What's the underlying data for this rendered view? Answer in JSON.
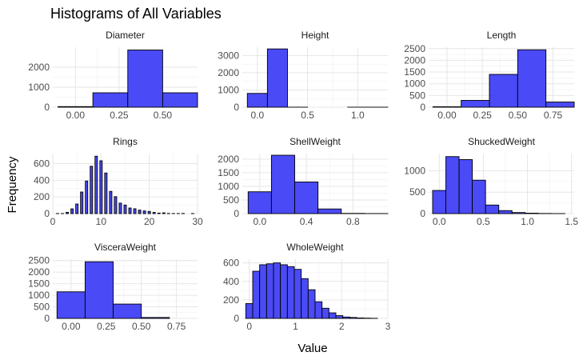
{
  "chart_data": {
    "type": "bar",
    "title": "Histograms of All Variables",
    "xlabel": "Value",
    "ylabel": "Frequency",
    "fill_color": "#4040f5",
    "outline_color": "#000000",
    "facet_layout": "3 columns, free scales",
    "facets": [
      {
        "name": "Diameter",
        "bin_width": 0.2,
        "bin_centers": [
          0.0,
          0.2,
          0.4,
          0.6
        ],
        "counts": [
          30,
          720,
          2860,
          720
        ],
        "x_ticks": [
          0.0,
          0.25,
          0.5
        ],
        "x_tick_labels": [
          "0.00",
          "0.25",
          "0.50"
        ],
        "xlim": [
          -0.13,
          0.7
        ],
        "y_ticks": [
          0,
          1000,
          2000
        ],
        "ylim": [
          0,
          3000
        ]
      },
      {
        "name": "Height",
        "bin_width": 0.2,
        "bin_centers": [
          0.0,
          0.2,
          0.4,
          0.6,
          0.8,
          1.0,
          1.2
        ],
        "counts": [
          800,
          3380,
          2,
          0,
          0,
          1,
          1
        ],
        "x_ticks": [
          0.0,
          0.5,
          1.0
        ],
        "x_tick_labels": [
          "0.0",
          "0.5",
          "1.0"
        ],
        "xlim": [
          -0.15,
          1.3
        ],
        "y_ticks": [
          0,
          1000,
          2000,
          3000
        ],
        "ylim": [
          0,
          3480
        ]
      },
      {
        "name": "Length",
        "bin_width": 0.2,
        "bin_centers": [
          0.0,
          0.2,
          0.4,
          0.6,
          0.8
        ],
        "counts": [
          20,
          290,
          1400,
          2450,
          220
        ],
        "x_ticks": [
          0.0,
          0.25,
          0.5,
          0.75
        ],
        "x_tick_labels": [
          "0.00",
          "0.25",
          "0.50",
          "0.75"
        ],
        "xlim": [
          -0.13,
          0.9
        ],
        "y_ticks": [
          0,
          500,
          1000,
          1500,
          2000,
          2500
        ],
        "ylim": [
          0,
          2560
        ]
      },
      {
        "name": "Rings",
        "bin_width": 0.5,
        "bin_centers": [
          1,
          2,
          3,
          4,
          5,
          6,
          7,
          8,
          9,
          10,
          11,
          12,
          13,
          14,
          15,
          16,
          17,
          18,
          19,
          20,
          21,
          22,
          23,
          24,
          25,
          26,
          27,
          28,
          29
        ],
        "counts": [
          1,
          1,
          15,
          57,
          115,
          259,
          391,
          568,
          689,
          634,
          487,
          267,
          203,
          126,
          103,
          67,
          58,
          42,
          32,
          26,
          14,
          6,
          9,
          2,
          1,
          1,
          2,
          0,
          1
        ],
        "x_ticks": [
          0,
          10,
          20,
          30
        ],
        "x_tick_labels": [
          "0",
          "10",
          "20",
          "30"
        ],
        "xlim": [
          0,
          30
        ],
        "y_ticks": [
          0,
          200,
          400,
          600
        ],
        "ylim": [
          0,
          720
        ]
      },
      {
        "name": "ShellWeight",
        "bin_width": 0.2,
        "bin_centers": [
          0.0,
          0.2,
          0.4,
          0.6,
          0.8,
          1.0
        ],
        "counts": [
          800,
          2140,
          1160,
          170,
          8,
          2
        ],
        "x_ticks": [
          0.0,
          0.4,
          0.8
        ],
        "x_tick_labels": [
          "0.0",
          "0.4",
          "0.8"
        ],
        "xlim": [
          -0.15,
          1.1
        ],
        "y_ticks": [
          0,
          500,
          1000,
          1500,
          2000
        ],
        "ylim": [
          0,
          2200
        ]
      },
      {
        "name": "ShuckedWeight",
        "bin_width": 0.15,
        "bin_centers": [
          0.0,
          0.15,
          0.3,
          0.45,
          0.6,
          0.75,
          0.9,
          1.05,
          1.2,
          1.35
        ],
        "counts": [
          540,
          1330,
          1260,
          780,
          200,
          70,
          25,
          10,
          3,
          1
        ],
        "x_ticks": [
          0.0,
          0.5,
          1.0,
          1.5
        ],
        "x_tick_labels": [
          "0.0",
          "0.5",
          "1.0",
          "1.5"
        ],
        "xlim": [
          -0.12,
          1.53
        ],
        "y_ticks": [
          0,
          500,
          1000
        ],
        "ylim": [
          0,
          1400
        ]
      },
      {
        "name": "VisceraWeight",
        "bin_width": 0.2,
        "bin_centers": [
          0.0,
          0.2,
          0.4,
          0.6
        ],
        "counts": [
          1150,
          2450,
          620,
          40
        ],
        "x_ticks": [
          0.0,
          0.25,
          0.5,
          0.75
        ],
        "x_tick_labels": [
          "0.00",
          "0.25",
          "0.50",
          "0.75"
        ],
        "xlim": [
          -0.13,
          0.9
        ],
        "y_ticks": [
          0,
          500,
          1000,
          1500,
          2000,
          2500
        ],
        "ylim": [
          0,
          2560
        ]
      },
      {
        "name": "WholeWeight",
        "bin_width": 0.15,
        "bin_centers": [
          0.0,
          0.15,
          0.3,
          0.45,
          0.6,
          0.75,
          0.9,
          1.05,
          1.2,
          1.35,
          1.5,
          1.65,
          1.8,
          1.95,
          2.1,
          2.25,
          2.4,
          2.55,
          2.7
        ],
        "counts": [
          160,
          510,
          580,
          590,
          600,
          580,
          560,
          530,
          430,
          310,
          180,
          110,
          60,
          30,
          15,
          10,
          5,
          3,
          1
        ],
        "x_ticks": [
          0,
          1,
          2,
          3
        ],
        "x_tick_labels": [
          "0",
          "1",
          "2",
          "3"
        ],
        "xlim": [
          -0.15,
          3.0
        ],
        "y_ticks": [
          0,
          200,
          400,
          600
        ],
        "ylim": [
          0,
          640
        ]
      }
    ]
  }
}
